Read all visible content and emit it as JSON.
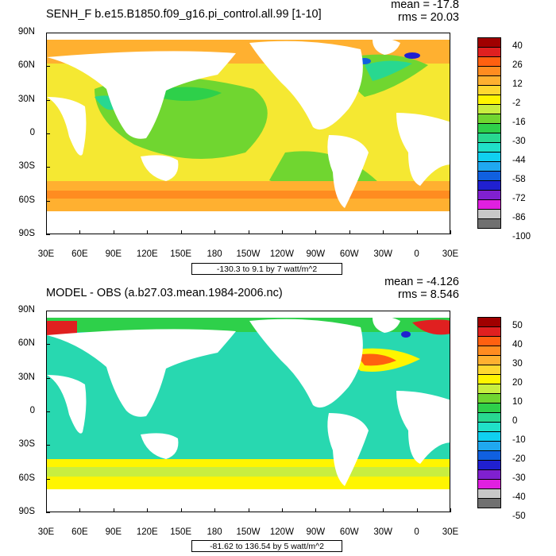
{
  "panels": [
    {
      "title": "SENH_F b.e15.B1850.f09_g16.pi_control.all.99 [1-10]",
      "mean": "mean = -17.8",
      "rms": "rms = 20.03",
      "info": "-130.3 to 9.1 by 7 watt/m^2",
      "cb_labels": [
        "40",
        "26",
        "12",
        "-2",
        "-16",
        "-30",
        "-44",
        "-58",
        "-72",
        "-86",
        "-100"
      ],
      "cb_colors": [
        "#a00000",
        "#e02020",
        "#ff6010",
        "#ff8c20",
        "#ffb030",
        "#ffd830",
        "#fff500",
        "#c8ee40",
        "#70d630",
        "#2ed04a",
        "#28d890",
        "#20e0c8",
        "#10d0f0",
        "#20a8f0",
        "#1060e0",
        "#2020d0",
        "#8020d0",
        "#e020e0",
        "#c8c8c8",
        "#707070"
      ]
    },
    {
      "title": "MODEL - OBS (a.b27.03.mean.1984-2006.nc)",
      "mean": "mean = -4.126",
      "rms": "rms = 8.546",
      "info": "-81.62 to 136.54 by 5 watt/m^2",
      "cb_labels": [
        "50",
        "40",
        "30",
        "20",
        "10",
        "0",
        "-10",
        "-20",
        "-30",
        "-40",
        "-50"
      ],
      "cb_colors": [
        "#a00000",
        "#e02020",
        "#ff6010",
        "#ff8c20",
        "#ffb030",
        "#ffd830",
        "#fff500",
        "#c8ee40",
        "#70d630",
        "#2ed04a",
        "#28d890",
        "#20e0c8",
        "#10d0f0",
        "#20a8f0",
        "#1060e0",
        "#2020d0",
        "#8020d0",
        "#e020e0",
        "#c8c8c8",
        "#707070"
      ]
    }
  ],
  "lat_labels": [
    "90N",
    "60N",
    "30N",
    "0",
    "30S",
    "60S",
    "90S"
  ],
  "lon_labels": [
    "30E",
    "60E",
    "90E",
    "120E",
    "150E",
    "180",
    "150W",
    "120W",
    "90W",
    "60W",
    "30W",
    "0",
    "30E"
  ],
  "chart_data": [
    {
      "type": "heatmap",
      "title": "SENH_F b.e15.B1850.f09_g16.pi_control.all.99 [1-10]",
      "xlabel": "",
      "ylabel": "",
      "xlim": [
        30,
        390
      ],
      "ylim": [
        -90,
        90
      ],
      "contour_info": "-130.3 to 9.1 by 7 watt/m^2",
      "levels": [
        40,
        33,
        26,
        19,
        12,
        5,
        -2,
        -9,
        -16,
        -23,
        -30,
        -37,
        -44,
        -51,
        -58,
        -65,
        -72,
        -79,
        -86,
        -93,
        -100
      ],
      "summary": {
        "mean": -17.8,
        "rms": 20.03
      }
    },
    {
      "type": "heatmap",
      "title": "MODEL - OBS (a.b27.03.mean.1984-2006.nc)",
      "xlabel": "",
      "ylabel": "",
      "xlim": [
        30,
        390
      ],
      "ylim": [
        -90,
        90
      ],
      "contour_info": "-81.62 to 136.54 by 5 watt/m^2",
      "levels": [
        50,
        45,
        40,
        35,
        30,
        25,
        20,
        15,
        10,
        5,
        0,
        -5,
        -10,
        -15,
        -20,
        -25,
        -30,
        -35,
        -40,
        -45,
        -50
      ],
      "summary": {
        "mean": -4.126,
        "rms": 8.546
      }
    }
  ]
}
